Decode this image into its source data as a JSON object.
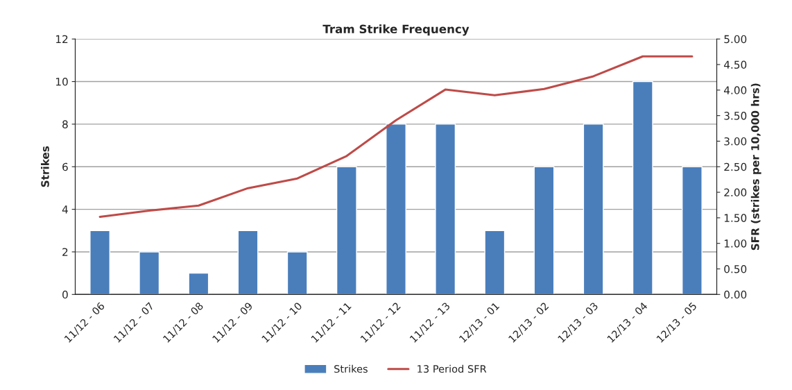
{
  "chart_data": {
    "type": "bar",
    "title": "Tram Strike Frequency",
    "ylabel": "Strikes",
    "y2label": "SFR (strikes per 10,000 hrs)",
    "categories": [
      "11/12 - 06",
      "11/12 - 07",
      "11/12 - 08",
      "11/12 - 09",
      "11/12 - 10",
      "11/12 - 11",
      "11/12 - 12",
      "11/12 - 13",
      "12/13 - 01",
      "12/13 - 02",
      "12/13 - 03",
      "12/13 - 04",
      "12/13 - 05"
    ],
    "series": [
      {
        "name": "Strikes",
        "color": "#4a7ebb",
        "values": [
          3,
          2,
          1,
          3,
          2,
          6,
          8,
          8,
          3,
          6,
          8,
          10,
          6
        ]
      },
      {
        "name": "13 Period SFR",
        "type": "line",
        "axis": "y2",
        "color": "#be4b48",
        "values": [
          1.52,
          1.64,
          1.74,
          2.08,
          2.27,
          2.71,
          3.41,
          4.01,
          3.9,
          4.02,
          4.27,
          4.66,
          4.66
        ]
      }
    ],
    "ylim": [
      0,
      12
    ],
    "yticks": [
      0,
      2,
      4,
      6,
      8,
      10,
      12
    ],
    "y2lim": [
      0,
      5
    ],
    "y2ticks": [
      {
        "value": 0,
        "label": "0.00"
      },
      {
        "value": 0.5,
        "label": "0.50"
      },
      {
        "value": 1,
        "label": "1.00"
      },
      {
        "value": 1.5,
        "label": "1.50"
      },
      {
        "value": 2,
        "label": "2.00"
      },
      {
        "value": 2.5,
        "label": "2.50"
      },
      {
        "value": 3,
        "label": "3.00"
      },
      {
        "value": 3.5,
        "label": "3.50"
      },
      {
        "value": 4,
        "label": "4.00"
      },
      {
        "value": 4.5,
        "label": "4.50"
      },
      {
        "value": 5,
        "label": "5.00"
      }
    ],
    "grid": "y",
    "legend": "bottom",
    "marker": "none"
  }
}
